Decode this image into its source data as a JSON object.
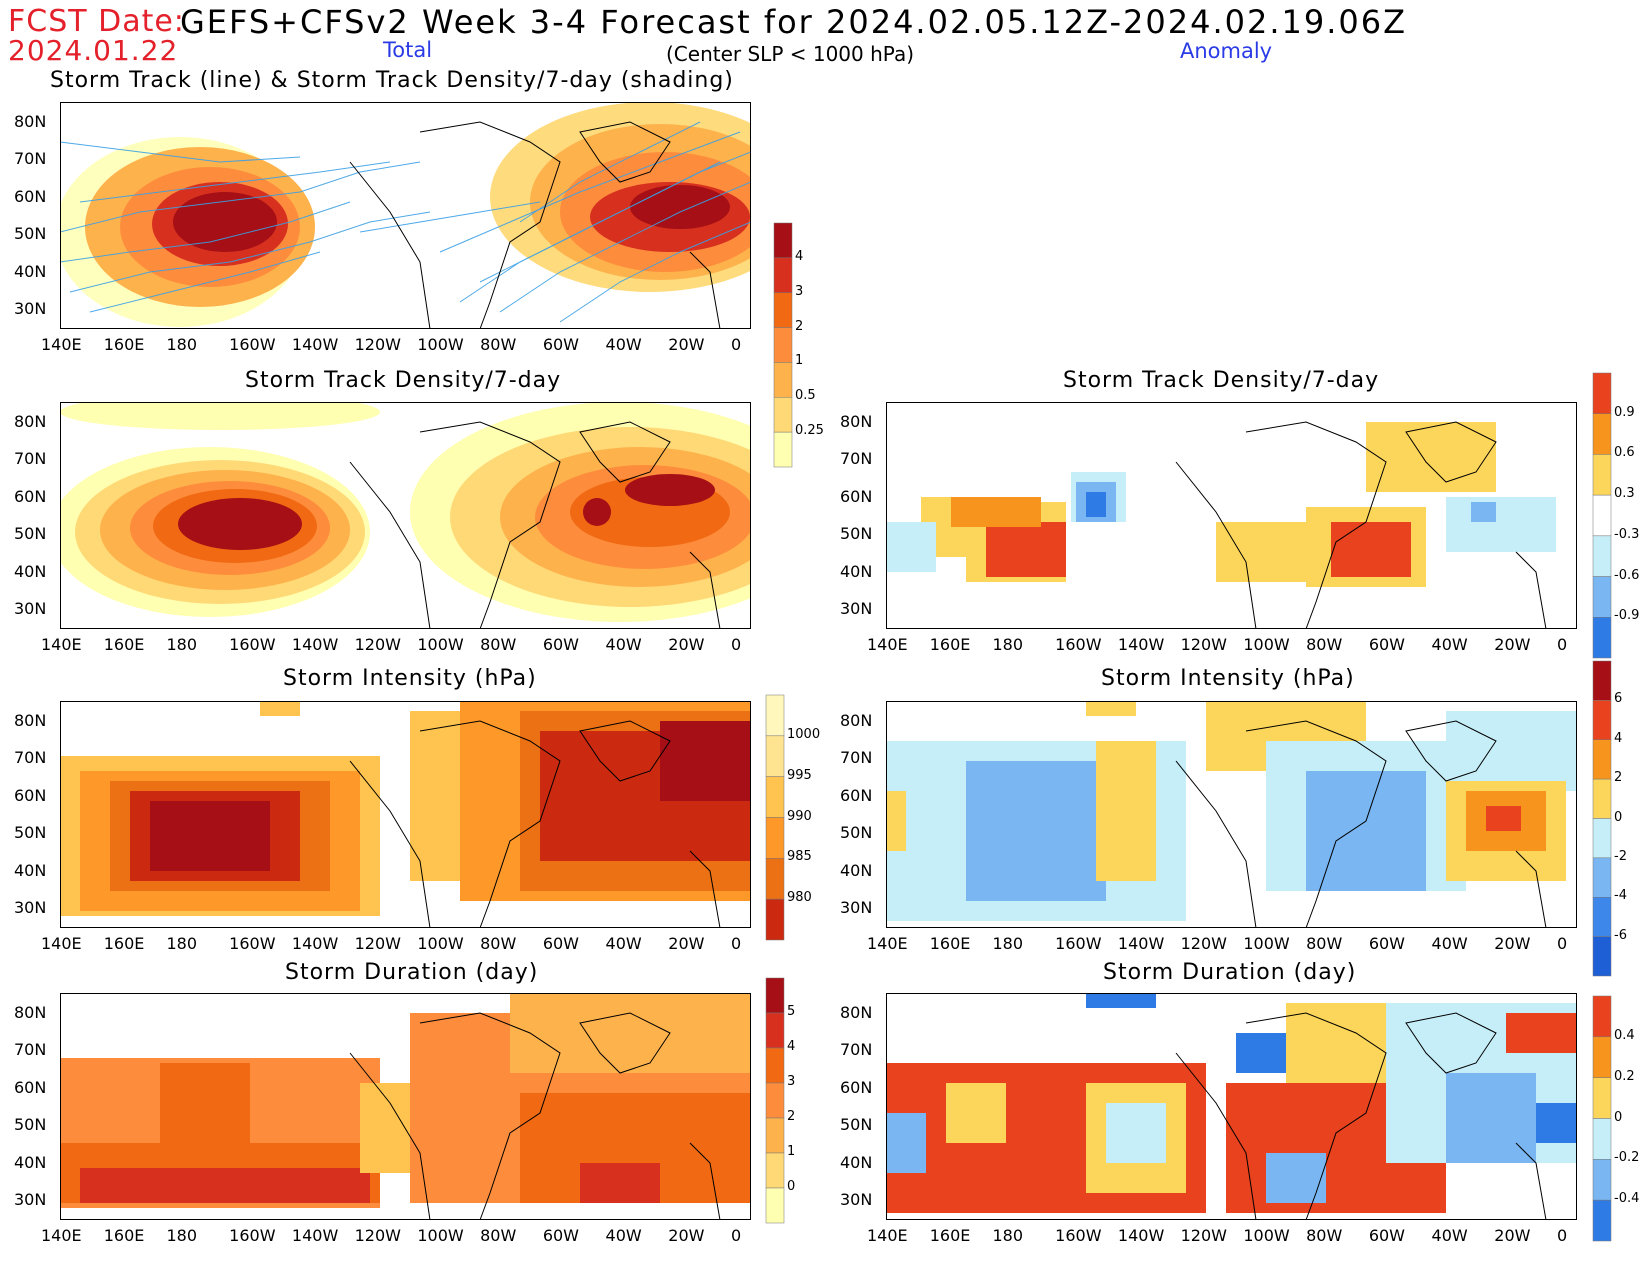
{
  "header": {
    "fcst_label": "FCST Date:",
    "fcst_date": "2024.01.22",
    "title": "GEFS+CFSv2 Week 3-4 Forecast for 2024.02.05.12Z-2024.02.19.06Z",
    "total_label": "Total",
    "criterion": "(Center SLP < 1000 hPa)",
    "anomaly_label": "Anomaly"
  },
  "panels": [
    {
      "id": "track",
      "title": "Storm Track (line) & Storm Track Density/7-day (shading)"
    },
    {
      "id": "density_total",
      "title": "Storm Track Density/7-day"
    },
    {
      "id": "density_anom",
      "title": "Storm Track Density/7-day"
    },
    {
      "id": "intensity_total",
      "title": "Storm Intensity (hPa)"
    },
    {
      "id": "intensity_anom",
      "title": "Storm Intensity (hPa)"
    },
    {
      "id": "duration_total",
      "title": "Storm Duration (day)"
    },
    {
      "id": "duration_anom",
      "title": "Storm Duration (day)"
    }
  ],
  "axes": {
    "lon_labels": [
      "140E",
      "160E",
      "180",
      "160W",
      "140W",
      "120W",
      "100W",
      "80W",
      "60W",
      "40W",
      "20W",
      "0"
    ],
    "lat_labels": [
      "80N",
      "70N",
      "60N",
      "50N",
      "40N",
      "30N"
    ]
  },
  "colorbars": {
    "density_total": {
      "labels": [
        "4",
        "3",
        "2",
        "1",
        "0.5",
        "0.25"
      ],
      "colors": [
        "#a50f15",
        "#d7301f",
        "#f16913",
        "#fd8d3c",
        "#feb24c",
        "#fed976",
        "#ffffb2"
      ]
    },
    "density_anom": {
      "labels": [
        "0.9",
        "0.6",
        "0.3",
        "-0.3",
        "-0.6",
        "-0.9"
      ],
      "colors": [
        "#e8421e",
        "#f7941d",
        "#fcd65a",
        "#ffffff",
        "#c6eef8",
        "#79b6f2",
        "#2f7be6"
      ]
    },
    "intensity_total": {
      "labels": [
        "1000",
        "995",
        "990",
        "985",
        "980"
      ],
      "colors": [
        "#fff7bc",
        "#fee391",
        "#fec44f",
        "#fe9929",
        "#ec7014",
        "#cc2a10"
      ]
    },
    "intensity_anom": {
      "labels": [
        "6",
        "4",
        "2",
        "0",
        "-2",
        "-4",
        "-6"
      ],
      "colors": [
        "#a50f15",
        "#e8421e",
        "#f7941d",
        "#fcd65a",
        "#c6eef8",
        "#79b6f2",
        "#3d86ea",
        "#1f5fd6"
      ]
    },
    "duration_total": {
      "labels": [
        "5",
        "4",
        "3",
        "2",
        "1",
        "0"
      ],
      "colors": [
        "#a50f15",
        "#d7301f",
        "#f16913",
        "#fd8d3c",
        "#feb24c",
        "#fed976",
        "#ffffb2"
      ]
    },
    "duration_anom": {
      "labels": [
        "0.4",
        "0.2",
        "0",
        "-0.2",
        "-0.4"
      ],
      "colors": [
        "#e8421e",
        "#f7941d",
        "#fcd65a",
        "#c6eef8",
        "#79b6f2",
        "#2f7be6"
      ]
    }
  }
}
